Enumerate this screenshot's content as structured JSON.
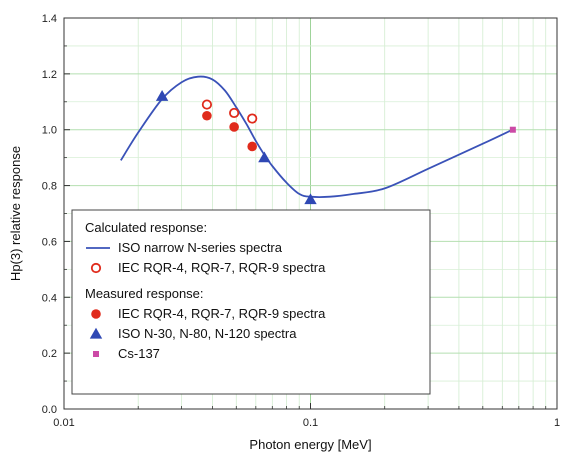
{
  "chart_data": {
    "type": "scatter",
    "xlabel": "Photon energy [MeV]",
    "ylabel": "Hp(3) relative response",
    "xscale": "log",
    "xlim": [
      0.01,
      1
    ],
    "ylim": [
      0,
      1.4
    ],
    "x_ticks": [
      {
        "value": 0.01,
        "label": "0.01"
      },
      {
        "value": 0.1,
        "label": "0.1"
      },
      {
        "value": 1,
        "label": "1"
      }
    ],
    "y_ticks": [
      {
        "value": 0.0,
        "label": "0.0"
      },
      {
        "value": 0.2,
        "label": "0.2"
      },
      {
        "value": 0.4,
        "label": "0.4"
      },
      {
        "value": 0.6,
        "label": "0.6"
      },
      {
        "value": 0.8,
        "label": "0.8"
      },
      {
        "value": 1.0,
        "label": "1.0"
      },
      {
        "value": 1.2,
        "label": "1.2"
      },
      {
        "value": 1.4,
        "label": "1.4"
      }
    ],
    "grid": true,
    "legend_position": "bottom-left",
    "legend_groups": [
      {
        "heading": "Calculated response:",
        "entries": [
          "iso-narrow",
          "iec-calc"
        ]
      },
      {
        "heading": "Measured response:",
        "entries": [
          "iec-meas",
          "iso-meas",
          "cs137"
        ]
      }
    ],
    "series": [
      {
        "id": "iso-narrow",
        "name": "ISO narrow N-series spectra",
        "style": "line",
        "color": "#3a52b8",
        "x": [
          0.017,
          0.02,
          0.025,
          0.03,
          0.035,
          0.04,
          0.045,
          0.05,
          0.055,
          0.06,
          0.065,
          0.07,
          0.08,
          0.09,
          0.1,
          0.12,
          0.15,
          0.2,
          0.3,
          0.5,
          0.66
        ],
        "y": [
          0.89,
          0.99,
          1.11,
          1.17,
          1.19,
          1.18,
          1.14,
          1.08,
          1.02,
          0.96,
          0.91,
          0.87,
          0.81,
          0.77,
          0.76,
          0.76,
          0.77,
          0.79,
          0.86,
          0.95,
          1.0
        ]
      },
      {
        "id": "iec-calc",
        "name": "IEC RQR-4, RQR-7, RQR-9 spectra",
        "style": "open-circle",
        "color": "#e02b1c",
        "x": [
          0.038,
          0.049,
          0.058
        ],
        "y": [
          1.09,
          1.06,
          1.04
        ]
      },
      {
        "id": "iec-meas",
        "name": "IEC RQR-4, RQR-7, RQR-9 spectra",
        "style": "filled-circle",
        "color": "#e02b1c",
        "x": [
          0.038,
          0.049,
          0.058
        ],
        "y": [
          1.05,
          1.01,
          0.94
        ]
      },
      {
        "id": "iso-meas",
        "name": "ISO N-30, N-80, N-120 spectra",
        "style": "triangle",
        "color": "#2f48b4",
        "x": [
          0.025,
          0.065,
          0.1
        ],
        "y": [
          1.12,
          0.9,
          0.75
        ]
      },
      {
        "id": "cs137",
        "name": "Cs-137",
        "style": "square",
        "color": "#cc4aa6",
        "x": [
          0.662
        ],
        "y": [
          1.0
        ]
      }
    ]
  }
}
